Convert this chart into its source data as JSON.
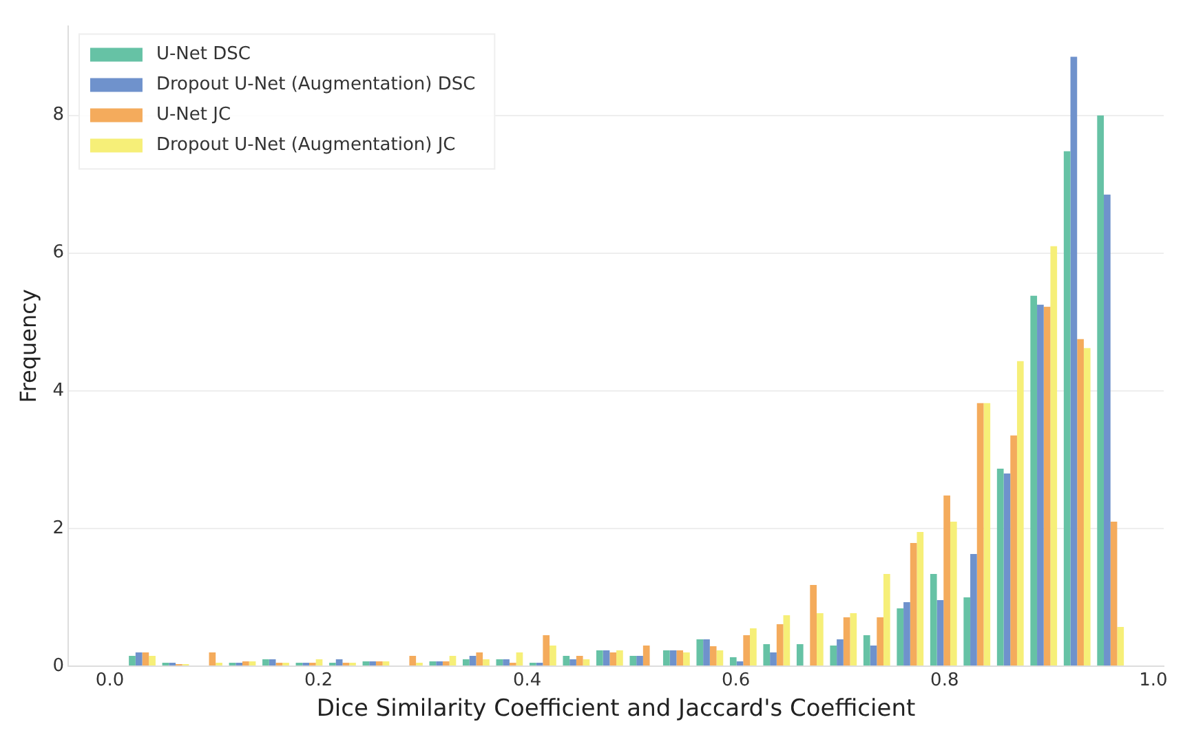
{
  "chart_data": {
    "type": "histogram",
    "xlabel": "Dice Similarity Coefficient and Jaccard's Coefficient",
    "ylabel": "Frequency",
    "bins": [
      0.015,
      0.047,
      0.079,
      0.111,
      0.143,
      0.175,
      0.207,
      0.239,
      0.271,
      0.303,
      0.335,
      0.367,
      0.399,
      0.431,
      0.463,
      0.495,
      0.527,
      0.559,
      0.591,
      0.623,
      0.655,
      0.687,
      0.719,
      0.751,
      0.783,
      0.815,
      0.847,
      0.879,
      0.911,
      0.943,
      0.975
    ],
    "series": [
      {
        "name": "U-Net DSC",
        "color": "#66c2a5",
        "values": [
          0.15,
          0.05,
          0,
          0.05,
          0.1,
          0.05,
          0.05,
          0.07,
          0,
          0.07,
          0.1,
          0.1,
          0.05,
          0.15,
          0.23,
          0.15,
          0.23,
          0.39,
          0.13,
          0.32,
          0.32,
          0.3,
          0.45,
          0.84,
          1.34,
          1.0,
          2.87,
          5.38,
          7.48,
          8.0
        ]
      },
      {
        "name": "Dropout U-Net (Augmentation) DSC",
        "color": "#6f92cc",
        "values": [
          0.2,
          0.05,
          0,
          0.05,
          0.1,
          0.05,
          0.1,
          0.07,
          0,
          0.07,
          0.15,
          0.1,
          0.05,
          0.1,
          0.23,
          0.15,
          0.23,
          0.39,
          0.07,
          0.2,
          0,
          0.39,
          0.3,
          0.93,
          0.96,
          1.63,
          2.8,
          5.25,
          8.85,
          6.85
        ]
      },
      {
        "name": "U-Net JC",
        "color": "#f4ab5c",
        "values": [
          0.2,
          0.03,
          0.2,
          0.07,
          0.05,
          0.05,
          0.05,
          0.07,
          0.15,
          0.07,
          0.2,
          0.05,
          0.45,
          0.15,
          0.2,
          0.3,
          0.23,
          0.29,
          0.45,
          0.61,
          1.18,
          0.71,
          0.71,
          1.79,
          2.48,
          3.82,
          3.35,
          5.22,
          4.75,
          2.1
        ]
      },
      {
        "name": "Dropout U-Net (Augmentation) JC",
        "color": "#f6ef78",
        "values": [
          0.15,
          0.03,
          0.05,
          0.07,
          0.05,
          0.1,
          0.05,
          0.07,
          0.05,
          0.15,
          0.1,
          0.2,
          0.3,
          0.1,
          0.23,
          0,
          0.2,
          0.23,
          0.55,
          0.74,
          0.77,
          0.77,
          1.34,
          1.95,
          2.1,
          3.82,
          4.43,
          6.1,
          4.62,
          0.57
        ]
      }
    ],
    "xlim": [
      -0.04,
      1.01
    ],
    "ylim": [
      0,
      9.3
    ],
    "xticks": [
      {
        "value": 0,
        "label": "0.0"
      },
      {
        "value": 0.2,
        "label": "0.2"
      },
      {
        "value": 0.4,
        "label": "0.4"
      },
      {
        "value": 0.6,
        "label": "0.6"
      },
      {
        "value": 0.8,
        "label": "0.8"
      },
      {
        "value": 1,
        "label": "1.0"
      }
    ],
    "yticks": [
      0,
      2,
      4,
      6,
      8
    ],
    "grid": "y",
    "legend": "top left"
  }
}
